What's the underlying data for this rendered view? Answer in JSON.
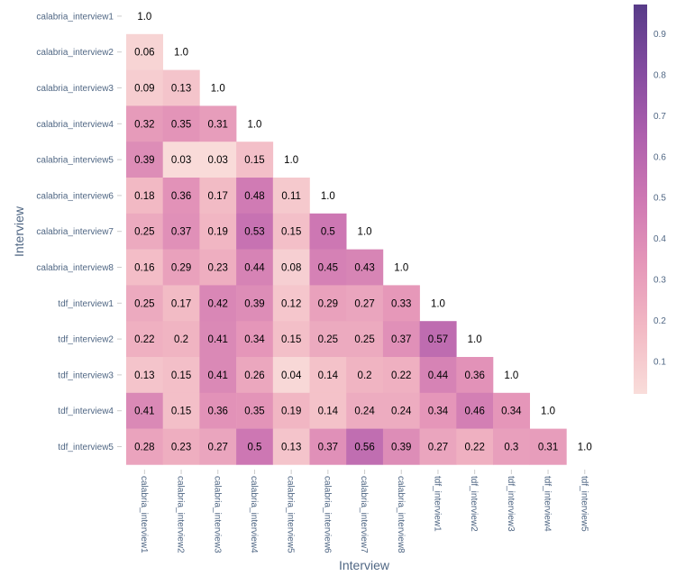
{
  "chart_data": {
    "type": "heatmap",
    "title": "",
    "xlabel": "Interview",
    "ylabel": "Interview",
    "labels": [
      "calabria_interview1",
      "calabria_interview2",
      "calabria_interview3",
      "calabria_interview4",
      "calabria_interview5",
      "calabria_interview6",
      "calabria_interview7",
      "calabria_interview8",
      "tdf_interview1",
      "tdf_interview2",
      "tdf_interview3",
      "tdf_interview4",
      "tdf_interview5"
    ],
    "matrix": [
      [
        1.0
      ],
      [
        0.06,
        1.0
      ],
      [
        0.09,
        0.13,
        1.0
      ],
      [
        0.32,
        0.35,
        0.31,
        1.0
      ],
      [
        0.39,
        0.03,
        0.03,
        0.15,
        1.0
      ],
      [
        0.18,
        0.36,
        0.17,
        0.48,
        0.11,
        1.0
      ],
      [
        0.25,
        0.37,
        0.19,
        0.53,
        0.15,
        0.5,
        1.0
      ],
      [
        0.16,
        0.29,
        0.23,
        0.44,
        0.08,
        0.45,
        0.43,
        1.0
      ],
      [
        0.25,
        0.17,
        0.42,
        0.39,
        0.12,
        0.29,
        0.27,
        0.33,
        1.0
      ],
      [
        0.22,
        0.2,
        0.41,
        0.34,
        0.15,
        0.25,
        0.25,
        0.37,
        0.57,
        1.0
      ],
      [
        0.13,
        0.15,
        0.41,
        0.26,
        0.04,
        0.14,
        0.2,
        0.22,
        0.44,
        0.36,
        1.0
      ],
      [
        0.41,
        0.15,
        0.36,
        0.35,
        0.19,
        0.14,
        0.24,
        0.24,
        0.34,
        0.46,
        0.34,
        1.0
      ],
      [
        0.28,
        0.23,
        0.27,
        0.5,
        0.13,
        0.37,
        0.56,
        0.39,
        0.27,
        0.22,
        0.3,
        0.31,
        1.0
      ]
    ],
    "diagonal_colored": false,
    "colorscale": [
      "#f9ddda",
      "#f2b9c4",
      "#e597b9",
      "#ce78b3",
      "#ad5fad",
      "#834ba0",
      "#573b88"
    ],
    "zrange": [
      0.02,
      0.97
    ],
    "colorbar_ticks": [
      0.1,
      0.2,
      0.3,
      0.4,
      0.5,
      0.6,
      0.7,
      0.8,
      0.9
    ],
    "colorbar_placement": "right"
  }
}
